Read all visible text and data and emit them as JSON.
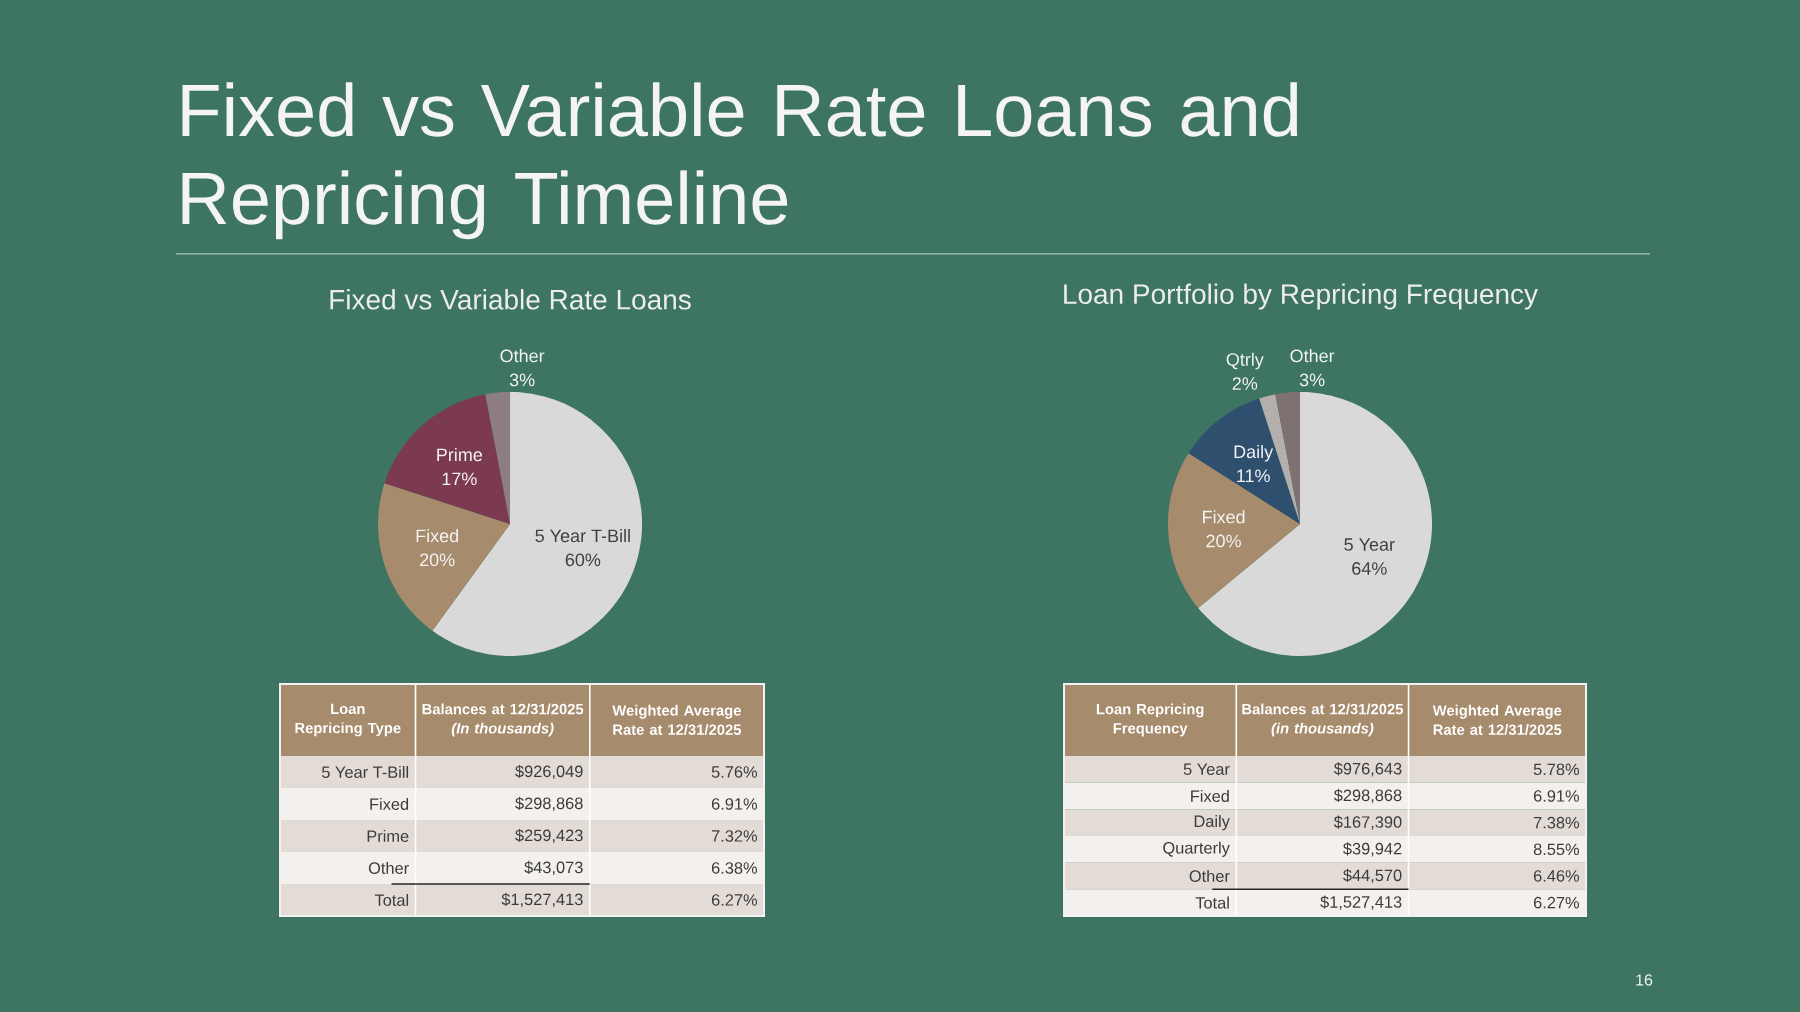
{
  "chart_data": [
    {
      "type": "other",
      "title": "Fixed vs Variable Rate Loans and Repricing Timeline",
      "annotations": [
        "16"
      ]
    },
    {
      "type": "pie",
      "title": "Fixed vs Variable Rate Loans",
      "categories": [
        "5 Year T-Bill",
        "Fixed",
        "Prime",
        "Other"
      ],
      "values": [
        60,
        20,
        17,
        3
      ],
      "value_labels": [
        "60%",
        "20%",
        "17%",
        "3%"
      ],
      "colors": [
        "#d9d9d9",
        "#a68b6d",
        "#7b3a4f",
        "#8c7e82"
      ]
    },
    {
      "type": "pie",
      "title": "Loan Portfolio by Repricing Frequency",
      "categories": [
        "5 Year",
        "Fixed",
        "Daily",
        "Qtrly",
        "Other"
      ],
      "values": [
        64,
        20,
        11,
        2,
        3
      ],
      "value_labels": [
        "64%",
        "20%",
        "11%",
        "2%",
        "3%"
      ],
      "colors": [
        "#d9d9d9",
        "#a68b6d",
        "#2f4f6f",
        "#b4aeac",
        "#7e7270"
      ]
    },
    {
      "type": "other",
      "annotations": [
        "Loan Repricing Type",
        "Balances at 12/31/2025 *(In thousands)*",
        "Weighted Average Rate at 12/31/2025",
        "5 Year T-Bill",
        "$926,049",
        "5.76%",
        "Fixed",
        "$298,868",
        "6.91%",
        "Prime",
        "$259,423",
        "7.32%",
        "Other",
        "$43,073",
        "6.38%",
        "Total",
        "$1,527,413",
        "6.27%"
      ]
    },
    {
      "type": "other",
      "annotations": [
        "Loan Repricing Frequency",
        "Balances at 12/31/2025 *(in thousands)*",
        "Weighted Average Rate at 12/31/2025",
        "5 Year",
        "$976,643",
        "5.78%",
        "Fixed",
        "$298,868",
        "6.91%",
        "Daily",
        "$167,390",
        "7.38%",
        "Quarterly",
        "$39,942",
        "8.55%",
        "Other",
        "$44,570",
        "6.46%",
        "Total",
        "$1,527,413",
        "6.27%"
      ]
    }
  ]
}
